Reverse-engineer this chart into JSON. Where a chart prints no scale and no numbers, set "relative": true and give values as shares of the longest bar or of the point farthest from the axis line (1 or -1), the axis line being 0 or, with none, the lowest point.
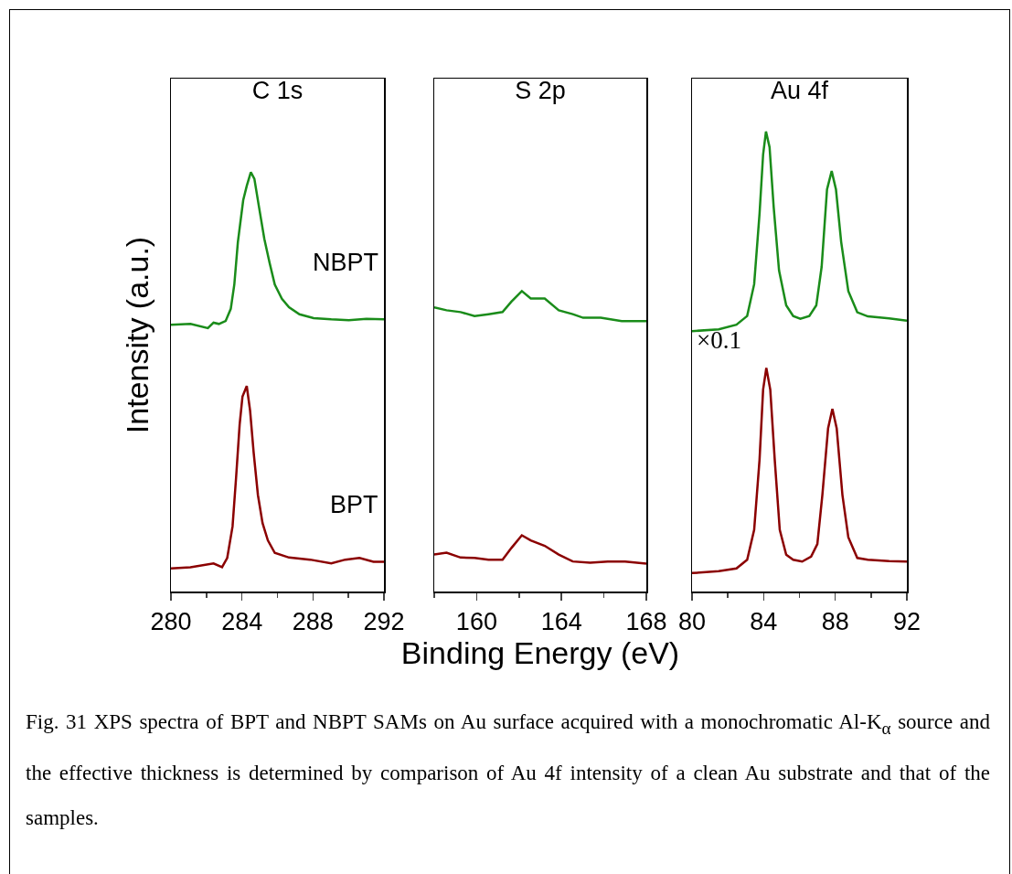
{
  "chart_data": [
    {
      "type": "line",
      "title": "C 1s",
      "ylabel": "Intensity (a.u.)",
      "relative": true,
      "tick_labels": "x",
      "line_style": "solid",
      "xlim": [
        280,
        292
      ],
      "xticks": [
        280,
        284,
        288,
        292
      ],
      "series": [
        {
          "name": "NBPT",
          "color": "#1a8c1a",
          "x": [
            280,
            281.1,
            282.08,
            282.4,
            282.7,
            283.08,
            283.37,
            283.57,
            283.77,
            284.07,
            284.27,
            284.5,
            284.7,
            284.96,
            285.26,
            285.56,
            285.85,
            286.25,
            286.65,
            287.24,
            288.04,
            289.03,
            290.02,
            291.01,
            292
          ],
          "values": [
            0.636,
            0.638,
            0.628,
            0.641,
            0.638,
            0.645,
            0.674,
            0.732,
            0.833,
            0.933,
            0.967,
            1,
            0.984,
            0.917,
            0.841,
            0.783,
            0.732,
            0.698,
            0.678,
            0.661,
            0.652,
            0.649,
            0.647,
            0.65,
            0.649
          ]
        },
        {
          "name": "BPT",
          "color": "#8b0000",
          "x": [
            280,
            281.1,
            282.4,
            282.88,
            283.17,
            283.47,
            283.67,
            283.87,
            284.03,
            284.27,
            284.46,
            284.66,
            284.9,
            285.16,
            285.46,
            285.85,
            286.65,
            287.84,
            289.03,
            289.82,
            290.62,
            291.41,
            292
          ],
          "values": [
            0.055,
            0.058,
            0.067,
            0.058,
            0.08,
            0.155,
            0.272,
            0.398,
            0.465,
            0.49,
            0.431,
            0.331,
            0.23,
            0.163,
            0.122,
            0.092,
            0.081,
            0.076,
            0.067,
            0.076,
            0.08,
            0.071,
            0.071
          ]
        }
      ]
    },
    {
      "type": "line",
      "title": "S 2p",
      "xlabel": "Binding Energy (eV)",
      "relative": true,
      "tick_labels": "x",
      "line_style": "solid",
      "xlim": [
        158,
        168
      ],
      "xticks": [
        160,
        164,
        168
      ],
      "series": [
        {
          "color": "#1a8c1a",
          "x": [
            158,
            158.58,
            159.24,
            159.9,
            160.56,
            161.22,
            161.64,
            162.13,
            162.55,
            163.21,
            163.87,
            164.53,
            165.02,
            165.85,
            166.84,
            168
          ],
          "values": [
            0.946,
            0.936,
            0.93,
            0.917,
            0.923,
            0.93,
            0.965,
            1,
            0.975,
            0.975,
            0.936,
            0.923,
            0.911,
            0.911,
            0.9,
            0.9
          ]
        },
        {
          "color": "#8b0000",
          "x": [
            158,
            158.58,
            159.24,
            159.9,
            160.56,
            161.22,
            161.64,
            162.13,
            162.55,
            163.21,
            163.87,
            164.53,
            165.35,
            166.18,
            167.0,
            168
          ],
          "values": [
            0.123,
            0.129,
            0.113,
            0.112,
            0.106,
            0.106,
            0.145,
            0.187,
            0.17,
            0.152,
            0.123,
            0.1,
            0.096,
            0.1,
            0.1,
            0.093
          ]
        }
      ]
    },
    {
      "type": "line",
      "title": "Au 4f",
      "relative": true,
      "tick_labels": "x",
      "line_style": "solid",
      "xlim": [
        80,
        92
      ],
      "xticks": [
        80,
        84,
        88,
        92
      ],
      "annotations": [
        "×0.1"
      ],
      "series": [
        {
          "color": "#1a8c1a",
          "x": [
            80,
            81.49,
            82.48,
            83.08,
            83.47,
            83.77,
            83.97,
            84.13,
            84.33,
            84.56,
            84.86,
            85.26,
            85.65,
            86.05,
            86.55,
            86.94,
            87.24,
            87.54,
            87.8,
            88.04,
            88.33,
            88.73,
            89.23,
            89.82,
            91.01,
            92
          ],
          "values": [
            0.566,
            0.57,
            0.58,
            0.599,
            0.668,
            0.821,
            0.95,
            1,
            0.966,
            0.836,
            0.698,
            0.622,
            0.599,
            0.593,
            0.599,
            0.622,
            0.706,
            0.874,
            0.914,
            0.874,
            0.76,
            0.653,
            0.607,
            0.598,
            0.594,
            0.589
          ]
        },
        {
          "color": "#8b0000",
          "x": [
            80,
            81.49,
            82.48,
            83.08,
            83.47,
            83.77,
            83.97,
            84.15,
            84.37,
            84.62,
            84.9,
            85.26,
            85.65,
            86.15,
            86.65,
            87.0,
            87.28,
            87.6,
            87.84,
            88.08,
            88.4,
            88.73,
            89.23,
            89.82,
            91.01,
            92
          ],
          "values": [
            0.04,
            0.044,
            0.05,
            0.069,
            0.134,
            0.286,
            0.439,
            0.486,
            0.439,
            0.286,
            0.134,
            0.08,
            0.069,
            0.065,
            0.076,
            0.103,
            0.21,
            0.355,
            0.397,
            0.355,
            0.21,
            0.118,
            0.073,
            0.069,
            0.066,
            0.065
          ]
        }
      ]
    },
    {
      "type": "other",
      "annotations": [
        "Fig. 31 XPS spectra of BPT and NBPT SAMs on Au surface acquired with a monochromatic Al-K$_{α}$ source and the effective thickness is determined by comparison of Au 4f intensity of a clean Au substrate and that of the samples."
      ]
    }
  ]
}
